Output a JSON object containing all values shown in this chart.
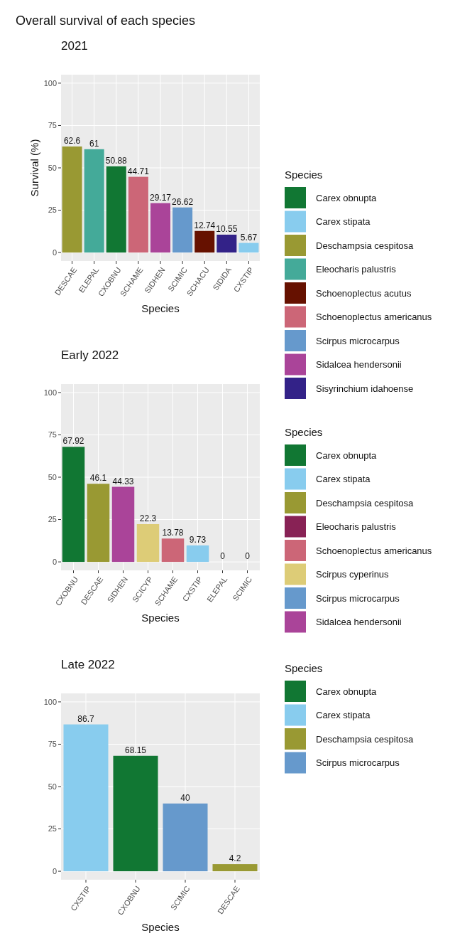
{
  "chart_data": [
    {
      "type": "bar",
      "title": "Overall survival of each species",
      "subtitle": "2021",
      "xlabel": "Species",
      "ylabel": "Survival (%)",
      "legend_title": "Species",
      "legend": "right",
      "grid": true,
      "data_labels": true,
      "categories": [
        "DESCAE",
        "ELEPAL",
        "CXOBNU",
        "SCHAME",
        "SIDHEN",
        "SCIMIC",
        "SCHACU",
        "SIDIDA",
        "CXSTIP"
      ],
      "ylim": [
        -5,
        105
      ],
      "yticks": [
        0,
        25,
        50,
        75,
        100
      ],
      "series": [
        {
          "name": "Carex obnupta",
          "color": "#117733",
          "values": [
            null,
            null,
            50.88,
            null,
            null,
            null,
            null,
            null,
            null
          ]
        },
        {
          "name": "Carex stipata",
          "color": "#88ccee",
          "values": [
            null,
            null,
            null,
            null,
            null,
            null,
            null,
            null,
            5.67
          ]
        },
        {
          "name": "Deschampsia cespitosa",
          "color": "#999933",
          "values": [
            62.6,
            null,
            null,
            null,
            null,
            null,
            null,
            null,
            null
          ]
        },
        {
          "name": "Eleocharis palustris",
          "color": "#44aa99",
          "values": [
            null,
            61,
            null,
            null,
            null,
            null,
            null,
            null,
            null
          ]
        },
        {
          "name": "Schoenoplectus acutus",
          "color": "#661100",
          "values": [
            null,
            null,
            null,
            null,
            null,
            null,
            12.74,
            null,
            null
          ]
        },
        {
          "name": "Schoenoplectus americanus",
          "color": "#cc6677",
          "values": [
            null,
            null,
            null,
            44.71,
            null,
            null,
            null,
            null,
            null
          ]
        },
        {
          "name": "Scirpus microcarpus",
          "color": "#6699cc",
          "values": [
            null,
            null,
            null,
            null,
            null,
            26.62,
            null,
            null,
            null
          ]
        },
        {
          "name": "Sidalcea hendersonii",
          "color": "#aa4499",
          "values": [
            null,
            null,
            null,
            null,
            29.17,
            null,
            null,
            null,
            null
          ]
        },
        {
          "name": "Sisyrinchium idahoense",
          "color": "#332288",
          "values": [
            null,
            null,
            null,
            null,
            null,
            null,
            null,
            10.55,
            null
          ]
        }
      ]
    },
    {
      "type": "bar",
      "title": "Early 2022",
      "xlabel": "Species",
      "legend_title": "Species",
      "legend": "right",
      "grid": true,
      "data_labels": true,
      "categories": [
        "CXOBNU",
        "DESCAE",
        "SIDHEN",
        "SCICYP",
        "SCHAME",
        "CXSTIP",
        "ELEPAL",
        "SCIMIC"
      ],
      "ylim": [
        -5,
        105
      ],
      "yticks": [
        0,
        25,
        50,
        75,
        100
      ],
      "series": [
        {
          "name": "Carex obnupta",
          "color": "#117733",
          "values": [
            67.92,
            null,
            null,
            null,
            null,
            null,
            null,
            null
          ]
        },
        {
          "name": "Carex stipata",
          "color": "#88ccee",
          "values": [
            null,
            null,
            null,
            null,
            null,
            9.73,
            null,
            null
          ]
        },
        {
          "name": "Deschampsia cespitosa",
          "color": "#999933",
          "values": [
            null,
            46.1,
            null,
            null,
            null,
            null,
            null,
            null
          ]
        },
        {
          "name": "Eleocharis palustris",
          "color": "#882255",
          "values": [
            null,
            null,
            null,
            null,
            null,
            null,
            0,
            null
          ]
        },
        {
          "name": "Schoenoplectus americanus",
          "color": "#cc6677",
          "values": [
            null,
            null,
            null,
            null,
            13.78,
            null,
            null,
            null
          ]
        },
        {
          "name": "Scirpus cyperinus",
          "color": "#ddcc77",
          "values": [
            null,
            null,
            null,
            22.3,
            null,
            null,
            null,
            null
          ]
        },
        {
          "name": "Scirpus microcarpus",
          "color": "#6699cc",
          "values": [
            null,
            null,
            null,
            null,
            null,
            null,
            null,
            0
          ]
        },
        {
          "name": "Sidalcea hendersonii",
          "color": "#aa4499",
          "values": [
            null,
            null,
            44.33,
            null,
            null,
            null,
            null,
            null
          ]
        }
      ]
    },
    {
      "type": "bar",
      "title": "Late 2022",
      "xlabel": "Species",
      "legend_title": "Species",
      "legend": "right",
      "grid": true,
      "data_labels": true,
      "categories": [
        "CXSTIP",
        "CXOBNU",
        "SCIMIC",
        "DESCAE"
      ],
      "ylim": [
        -5,
        105
      ],
      "yticks": [
        0,
        25,
        50,
        75,
        100
      ],
      "series": [
        {
          "name": "Carex obnupta",
          "color": "#117733",
          "values": [
            null,
            68.15,
            null,
            null
          ]
        },
        {
          "name": "Carex stipata",
          "color": "#88ccee",
          "values": [
            86.7,
            null,
            null,
            null
          ]
        },
        {
          "name": "Deschampsia cespitosa",
          "color": "#999933",
          "values": [
            null,
            null,
            null,
            4.2
          ]
        },
        {
          "name": "Scirpus microcarpus",
          "color": "#6699cc",
          "values": [
            null,
            null,
            40,
            null
          ]
        }
      ]
    }
  ]
}
